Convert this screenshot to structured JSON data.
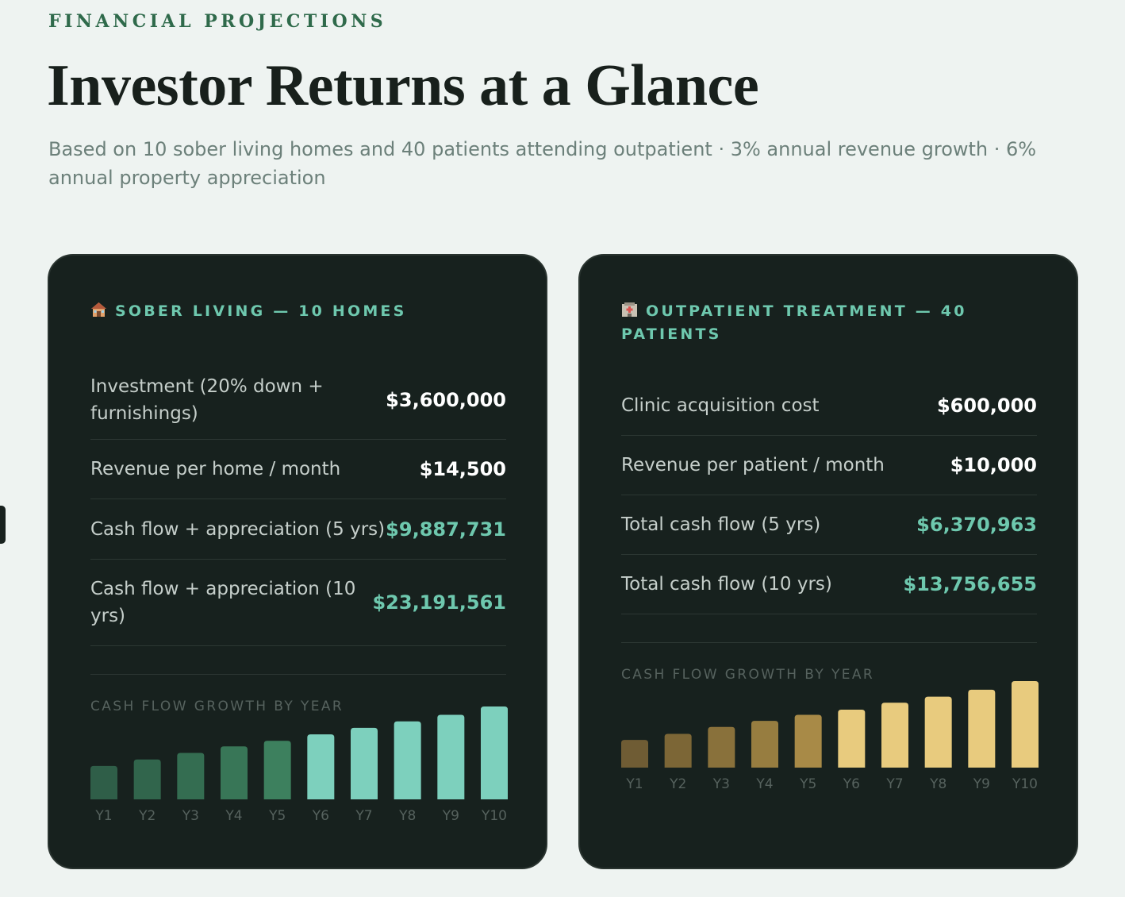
{
  "header": {
    "eyebrow": "FINANCIAL PROJECTIONS",
    "title": "Investor Returns at a Glance",
    "subtitle": "Based on 10 sober living homes and 40 patients attending outpatient · 3% annual revenue growth · 6% annual property appreciation"
  },
  "sober_living": {
    "icon": "house-icon",
    "heading": "SOBER LIVING — 10 HOMES",
    "rows": [
      {
        "label": "Investment (20% down + furnishings)",
        "value": "$3,600,000",
        "highlight": false
      },
      {
        "label": "Revenue per home / month",
        "value": "$14,500",
        "highlight": false
      },
      {
        "label": "Cash flow + appreciation (5 yrs)",
        "value": "$9,887,731",
        "highlight": true
      },
      {
        "label": "Cash flow + appreciation (10 yrs)",
        "value": "$23,191,561",
        "highlight": true
      }
    ],
    "chart_label": "CASH FLOW GROWTH BY YEAR"
  },
  "outpatient": {
    "icon": "hospital-icon",
    "heading": "OUTPATIENT TREATMENT — 40 PATIENTS",
    "rows": [
      {
        "label": "Clinic acquisition cost",
        "value": "$600,000",
        "highlight": false
      },
      {
        "label": "Revenue per patient / month",
        "value": "$10,000",
        "highlight": false
      },
      {
        "label": "Total cash flow (5 yrs)",
        "value": "$6,370,963",
        "highlight": true
      },
      {
        "label": "Total cash flow (10 yrs)",
        "value": "$13,756,655",
        "highlight": true
      }
    ],
    "chart_label": "CASH FLOW GROWTH BY YEAR"
  },
  "chart_data": [
    {
      "type": "bar",
      "categories": [
        "Y1",
        "Y2",
        "Y3",
        "Y4",
        "Y5",
        "Y6",
        "Y7",
        "Y8",
        "Y9",
        "Y10"
      ],
      "values": [
        36,
        43,
        50,
        57,
        63,
        70,
        77,
        84,
        91,
        100
      ],
      "ylim": [
        0,
        100
      ],
      "colors": [
        "#2f5e48",
        "#31654c",
        "#346d51",
        "#387657",
        "#3d805e",
        "#7dd0bd",
        "#7dd0bd",
        "#7dd0bd",
        "#7dd0bd",
        "#7dd0bd"
      ],
      "title": "CASH FLOW GROWTH BY YEAR",
      "xlabel": "",
      "ylabel": "",
      "grid": false
    },
    {
      "type": "bar",
      "categories": [
        "Y1",
        "Y2",
        "Y3",
        "Y4",
        "Y5",
        "Y6",
        "Y7",
        "Y8",
        "Y9",
        "Y10"
      ],
      "values": [
        32,
        39,
        47,
        54,
        61,
        67,
        75,
        82,
        90,
        100
      ],
      "ylim": [
        0,
        100
      ],
      "colors": [
        "#6f5c34",
        "#7c6636",
        "#89713b",
        "#977d40",
        "#a88a47",
        "#e8cb7e",
        "#e8cb7e",
        "#e8cb7e",
        "#e8cb7e",
        "#e8cb7e"
      ],
      "title": "CASH FLOW GROWTH BY YEAR",
      "xlabel": "",
      "ylabel": "",
      "grid": false
    }
  ]
}
